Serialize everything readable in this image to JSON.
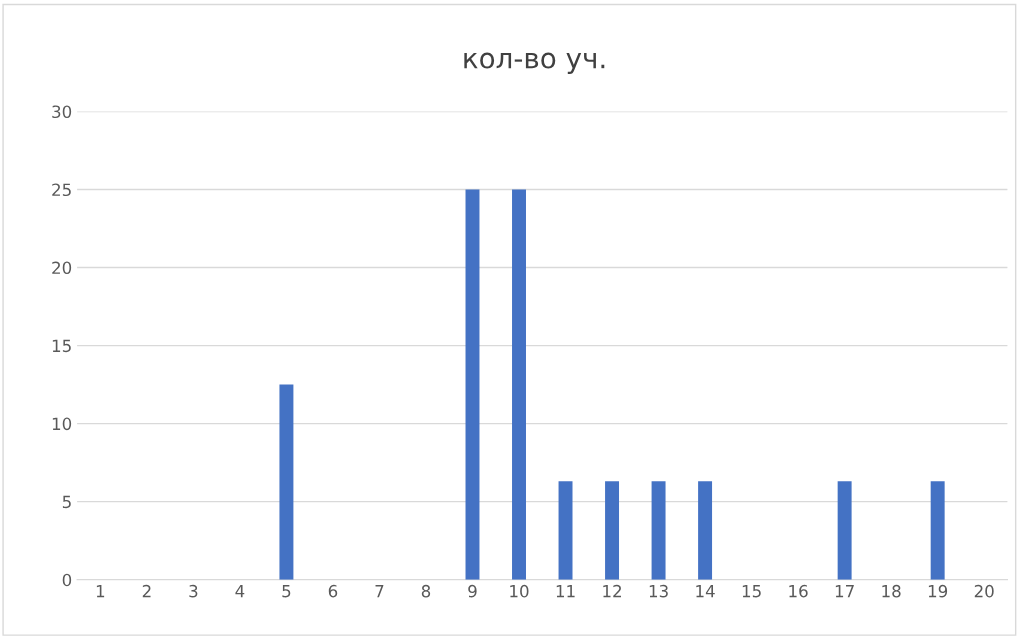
{
  "chart_data": {
    "type": "bar",
    "title": "кол-во уч.",
    "categories": [
      "1",
      "2",
      "3",
      "4",
      "5",
      "6",
      "7",
      "8",
      "9",
      "10",
      "11",
      "12",
      "13",
      "14",
      "15",
      "16",
      "17",
      "18",
      "19",
      "20"
    ],
    "values": [
      0,
      0,
      0,
      0,
      12.5,
      0,
      0,
      0,
      25,
      25,
      6.3,
      6.3,
      6.3,
      6.3,
      0,
      0,
      6.3,
      0,
      6.3,
      0
    ],
    "color": "#4472c4",
    "ylim": [
      0,
      30
    ],
    "yticks": [
      0,
      5,
      10,
      15,
      20,
      25,
      30
    ],
    "grid": "y",
    "legend": false
  }
}
